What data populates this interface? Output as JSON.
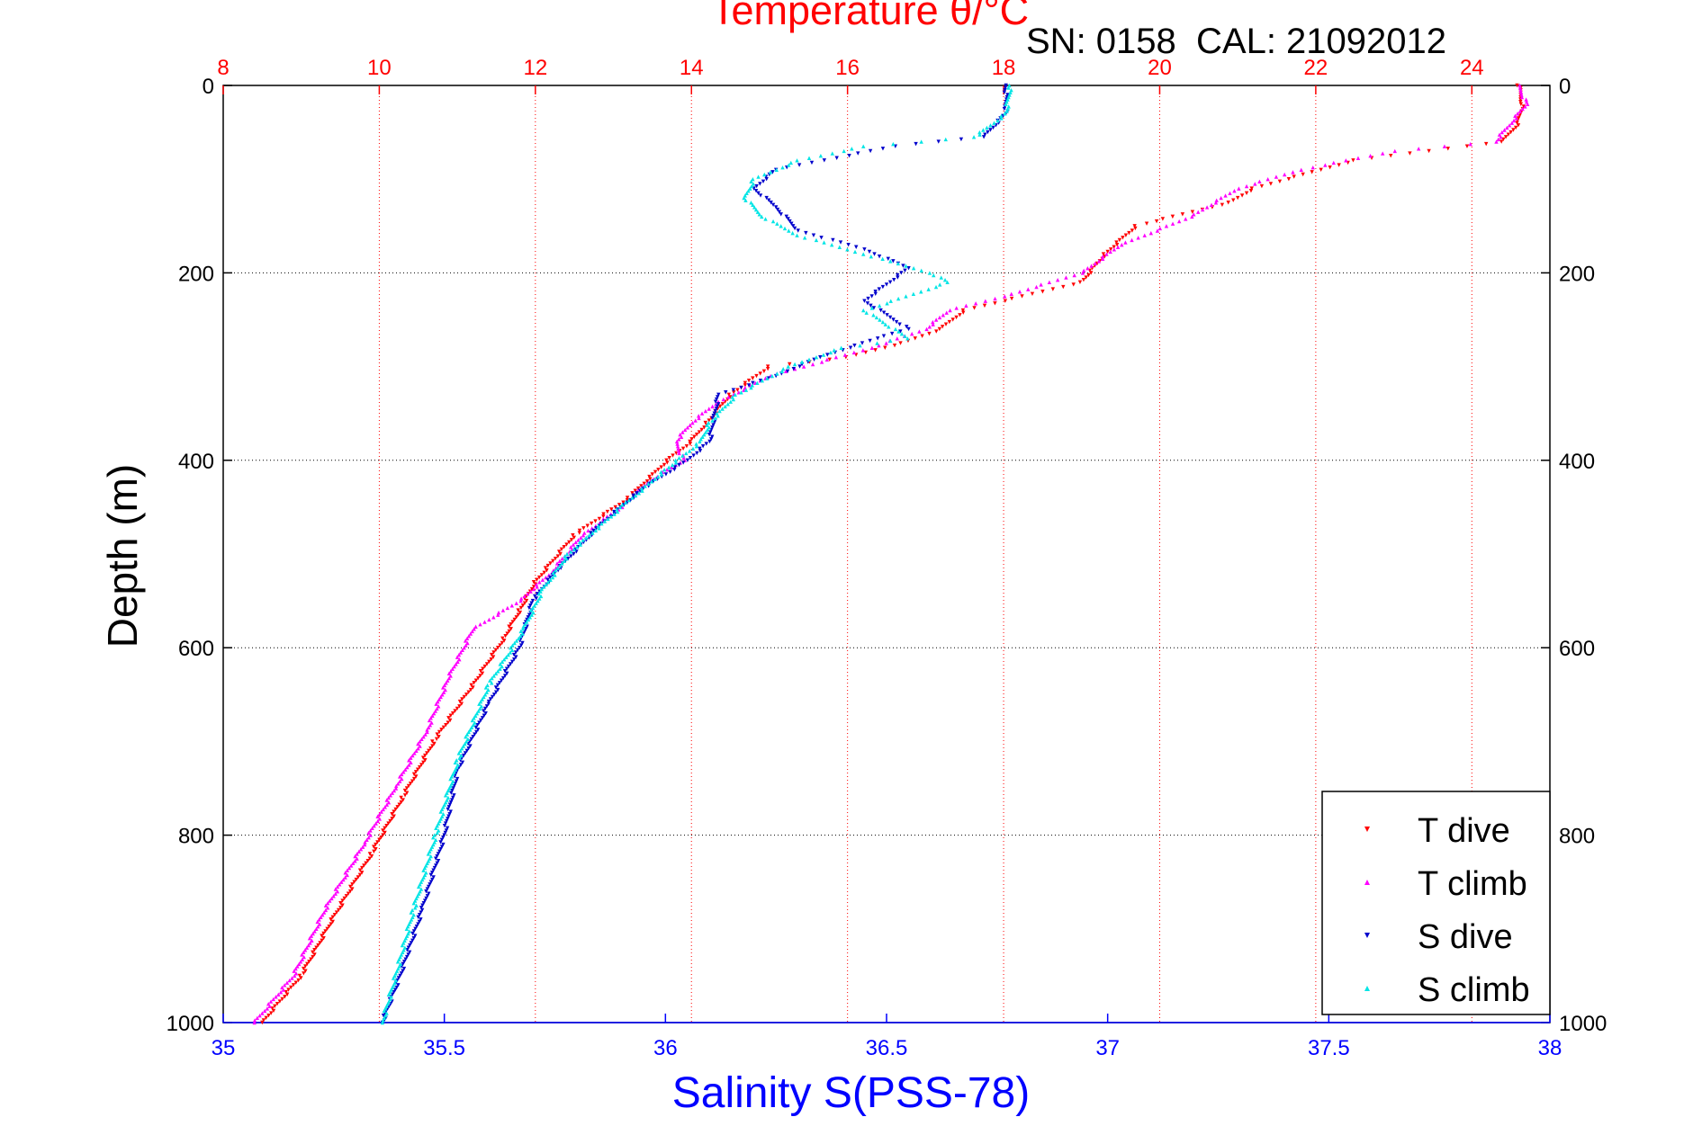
{
  "title": "Temperature θ/°C",
  "subtitle_sn": "SN: 0158",
  "subtitle_cal": "CAL: 21092012",
  "chart_data": {
    "type": "scatter",
    "title": "Temperature θ/°C",
    "xlabel": "Salinity S(PSS-78)",
    "ylabel": "Depth (m)",
    "x_bottom": {
      "label": "Salinity S(PSS-78)",
      "range": [
        35,
        38
      ],
      "ticks": [
        "35",
        "35.5",
        "36",
        "36.5",
        "37",
        "37.5",
        "38"
      ],
      "color": "#0000ff"
    },
    "x_top": {
      "label": "Temperature θ/°C",
      "range": [
        8,
        25
      ],
      "ticks": [
        "8",
        "10",
        "12",
        "14",
        "16",
        "18",
        "20",
        "22",
        "24"
      ],
      "color": "#ff0000"
    },
    "y": {
      "range": [
        0,
        1000
      ],
      "reversed": true,
      "ticks": [
        "0",
        "200",
        "400",
        "600",
        "800",
        "1000"
      ]
    },
    "grid": true,
    "legend_position": "bottom-right",
    "series": [
      {
        "name": "T dive",
        "axis": "temperature",
        "color": "#ff0000",
        "marker": "triangle-down",
        "points": [
          [
            24.6,
            0
          ],
          [
            24.65,
            20
          ],
          [
            24.6,
            40
          ],
          [
            24.4,
            60
          ],
          [
            22.5,
            80
          ],
          [
            21.2,
            110
          ],
          [
            20.9,
            125
          ],
          [
            19.7,
            150
          ],
          [
            19.3,
            180
          ],
          [
            19.0,
            210
          ],
          [
            17.5,
            240
          ],
          [
            17.2,
            260
          ],
          [
            16.7,
            275
          ],
          [
            16.0,
            290
          ],
          [
            15.0,
            300
          ],
          [
            14.5,
            330
          ],
          [
            14.2,
            360
          ],
          [
            14.0,
            380
          ],
          [
            13.7,
            400
          ],
          [
            13.2,
            440
          ],
          [
            12.5,
            480
          ],
          [
            12.0,
            530
          ],
          [
            11.8,
            560
          ],
          [
            11.6,
            590
          ],
          [
            11.2,
            640
          ],
          [
            10.7,
            700
          ],
          [
            10.3,
            760
          ],
          [
            9.9,
            820
          ],
          [
            9.4,
            890
          ],
          [
            9.0,
            950
          ],
          [
            8.5,
            1000
          ]
        ]
      },
      {
        "name": "T climb",
        "axis": "temperature",
        "color": "#ff00ff",
        "marker": "triangle-up",
        "points": [
          [
            24.6,
            0
          ],
          [
            24.7,
            20
          ],
          [
            24.5,
            40
          ],
          [
            24.3,
            60
          ],
          [
            23.0,
            70
          ],
          [
            21.8,
            90
          ],
          [
            21.0,
            110
          ],
          [
            20.4,
            140
          ],
          [
            19.5,
            170
          ],
          [
            19.0,
            200
          ],
          [
            18.0,
            225
          ],
          [
            17.3,
            240
          ],
          [
            17.0,
            260
          ],
          [
            16.3,
            280
          ],
          [
            15.0,
            310
          ],
          [
            14.3,
            340
          ],
          [
            14.0,
            360
          ],
          [
            13.8,
            380
          ],
          [
            13.9,
            400
          ],
          [
            13.5,
            420
          ],
          [
            13.1,
            450
          ],
          [
            12.6,
            480
          ],
          [
            12.2,
            520
          ],
          [
            11.8,
            550
          ],
          [
            11.2,
            580
          ],
          [
            10.9,
            630
          ],
          [
            10.6,
            690
          ],
          [
            10.2,
            750
          ],
          [
            9.8,
            810
          ],
          [
            9.3,
            880
          ],
          [
            8.9,
            950
          ],
          [
            8.4,
            1000
          ]
        ]
      },
      {
        "name": "S dive",
        "axis": "salinity",
        "color": "#0000cc",
        "marker": "triangle-down",
        "points": [
          [
            36.77,
            0
          ],
          [
            36.77,
            30
          ],
          [
            36.72,
            55
          ],
          [
            36.52,
            65
          ],
          [
            36.25,
            90
          ],
          [
            36.2,
            110
          ],
          [
            36.25,
            130
          ],
          [
            36.3,
            155
          ],
          [
            36.45,
            175
          ],
          [
            36.55,
            195
          ],
          [
            36.45,
            230
          ],
          [
            36.55,
            260
          ],
          [
            36.48,
            270
          ],
          [
            36.35,
            290
          ],
          [
            36.25,
            310
          ],
          [
            36.12,
            330
          ],
          [
            36.1,
            380
          ],
          [
            36.05,
            400
          ],
          [
            35.95,
            430
          ],
          [
            35.85,
            470
          ],
          [
            35.75,
            520
          ],
          [
            35.7,
            550
          ],
          [
            35.67,
            600
          ],
          [
            35.6,
            660
          ],
          [
            35.53,
            730
          ],
          [
            35.5,
            800
          ],
          [
            35.45,
            880
          ],
          [
            35.4,
            950
          ],
          [
            35.36,
            1000
          ]
        ]
      },
      {
        "name": "S climb",
        "axis": "salinity",
        "color": "#00e5e5",
        "marker": "triangle-up",
        "points": [
          [
            36.78,
            0
          ],
          [
            36.77,
            30
          ],
          [
            36.7,
            55
          ],
          [
            36.45,
            65
          ],
          [
            36.3,
            80
          ],
          [
            36.2,
            100
          ],
          [
            36.18,
            120
          ],
          [
            36.22,
            140
          ],
          [
            36.3,
            160
          ],
          [
            36.45,
            180
          ],
          [
            36.6,
            200
          ],
          [
            36.64,
            210
          ],
          [
            36.45,
            240
          ],
          [
            36.5,
            255
          ],
          [
            36.55,
            270
          ],
          [
            36.4,
            280
          ],
          [
            36.28,
            300
          ],
          [
            36.16,
            330
          ],
          [
            36.1,
            360
          ],
          [
            36.08,
            380
          ],
          [
            36.0,
            410
          ],
          [
            35.9,
            450
          ],
          [
            35.78,
            500
          ],
          [
            35.72,
            540
          ],
          [
            35.68,
            580
          ],
          [
            35.6,
            640
          ],
          [
            35.53,
            720
          ],
          [
            35.48,
            800
          ],
          [
            35.43,
            880
          ],
          [
            35.39,
            950
          ],
          [
            35.36,
            1000
          ]
        ]
      }
    ]
  }
}
